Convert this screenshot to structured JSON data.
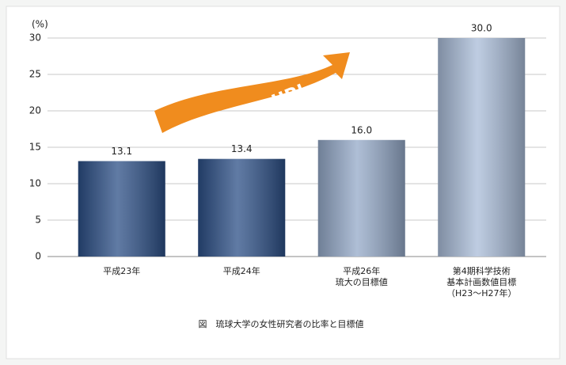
{
  "chart_data": {
    "type": "bar",
    "y_label": "(%)",
    "categories": [
      "平成23年",
      "平成24年",
      "平成26年\n琉大の目標値",
      "第4期科学技術\n基本計画数値目標\n（H23～H27年）"
    ],
    "values": [
      13.1,
      13.4,
      16.0,
      30.0
    ],
    "value_labels": [
      "13.1",
      "13.4",
      "16.0",
      "30.0"
    ],
    "colors": [
      "#2c4f86",
      "#2c4f86",
      "#94a9c8",
      "#a9bcd8"
    ],
    "ylim": [
      0,
      30
    ],
    "yticks": [
      0,
      5,
      10,
      15,
      20,
      25,
      30
    ],
    "grid": true,
    "annotation": "UP!",
    "caption": "図　琉球大学の女性研究者の比率と目標値"
  }
}
